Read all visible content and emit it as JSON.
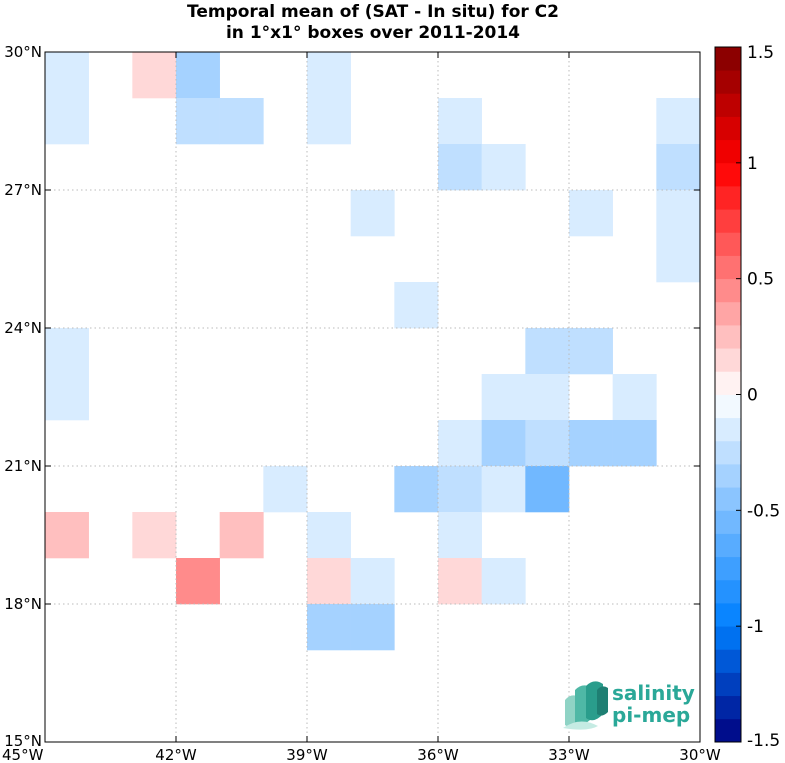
{
  "chart_data": {
    "type": "heatmap",
    "title_line1": "Temporal mean of (SAT - In situ) for C2",
    "title_line2": "in 1°x1° boxes over 2011-2014",
    "x_ticks": [
      {
        "lon": -45,
        "label": "45°W"
      },
      {
        "lon": -42,
        "label": "42°W"
      },
      {
        "lon": -39,
        "label": "39°W"
      },
      {
        "lon": -36,
        "label": "36°W"
      },
      {
        "lon": -33,
        "label": "33°W"
      },
      {
        "lon": -30,
        "label": "30°W"
      }
    ],
    "y_ticks": [
      {
        "lat": 30,
        "label": "30°N"
      },
      {
        "lat": 27,
        "label": "27°N"
      },
      {
        "lat": 24,
        "label": "24°N"
      },
      {
        "lat": 21,
        "label": "21°N"
      },
      {
        "lat": 18,
        "label": "18°N"
      },
      {
        "lat": 15,
        "label": "15°N"
      }
    ],
    "xlim": [
      -45,
      -30
    ],
    "ylim": [
      15,
      30
    ],
    "grid": true,
    "colorbar": {
      "min": -1.5,
      "max": 1.5,
      "levels": 30,
      "ticks": [
        {
          "value": 1.5,
          "label": "1.5"
        },
        {
          "value": 1,
          "label": "1"
        },
        {
          "value": 0.5,
          "label": "0.5"
        },
        {
          "value": 0,
          "label": "0"
        },
        {
          "value": -0.5,
          "label": "-0.5"
        },
        {
          "value": -1,
          "label": "-1"
        },
        {
          "value": -1.5,
          "label": "-1.5"
        }
      ],
      "colormap": "blue-white-red"
    },
    "cells": [
      {
        "lon": -45,
        "lat": 29,
        "value": -0.15
      },
      {
        "lon": -45,
        "lat": 28,
        "value": -0.15
      },
      {
        "lon": -43,
        "lat": 29,
        "value": 0.15
      },
      {
        "lon": -42,
        "lat": 29,
        "value": -0.35
      },
      {
        "lon": -42,
        "lat": 28,
        "value": -0.25
      },
      {
        "lon": -41,
        "lat": 28,
        "value": -0.25
      },
      {
        "lon": -39,
        "lat": 29,
        "value": -0.15
      },
      {
        "lon": -39,
        "lat": 28,
        "value": -0.15
      },
      {
        "lon": -36,
        "lat": 28,
        "value": -0.15
      },
      {
        "lon": -36,
        "lat": 27,
        "value": -0.25
      },
      {
        "lon": -35,
        "lat": 27,
        "value": -0.15
      },
      {
        "lon": -31,
        "lat": 28,
        "value": -0.15
      },
      {
        "lon": -31,
        "lat": 27,
        "value": -0.25
      },
      {
        "lon": -31,
        "lat": 26,
        "value": -0.15
      },
      {
        "lon": -31,
        "lat": 25,
        "value": -0.15
      },
      {
        "lon": -38,
        "lat": 26,
        "value": -0.15
      },
      {
        "lon": -33,
        "lat": 26,
        "value": -0.15
      },
      {
        "lon": -37,
        "lat": 24,
        "value": -0.15
      },
      {
        "lon": -45,
        "lat": 23,
        "value": -0.15
      },
      {
        "lon": -45,
        "lat": 22,
        "value": -0.15
      },
      {
        "lon": -34,
        "lat": 23,
        "value": -0.25
      },
      {
        "lon": -33,
        "lat": 23,
        "value": -0.25
      },
      {
        "lon": -35,
        "lat": 22,
        "value": -0.15
      },
      {
        "lon": -34,
        "lat": 22,
        "value": -0.15
      },
      {
        "lon": -32,
        "lat": 22,
        "value": -0.15
      },
      {
        "lon": -36,
        "lat": 21,
        "value": -0.15
      },
      {
        "lon": -35,
        "lat": 21,
        "value": -0.35
      },
      {
        "lon": -34,
        "lat": 21,
        "value": -0.25
      },
      {
        "lon": -33,
        "lat": 21,
        "value": -0.35
      },
      {
        "lon": -32,
        "lat": 21,
        "value": -0.35
      },
      {
        "lon": -40,
        "lat": 20,
        "value": -0.15
      },
      {
        "lon": -37,
        "lat": 20,
        "value": -0.35
      },
      {
        "lon": -36,
        "lat": 20,
        "value": -0.25
      },
      {
        "lon": -35,
        "lat": 20,
        "value": -0.15
      },
      {
        "lon": -34,
        "lat": 20,
        "value": -0.55
      },
      {
        "lon": -45,
        "lat": 19,
        "value": 0.25
      },
      {
        "lon": -43,
        "lat": 19,
        "value": 0.15
      },
      {
        "lon": -41,
        "lat": 19,
        "value": 0.25
      },
      {
        "lon": -39,
        "lat": 19,
        "value": -0.15
      },
      {
        "lon": -36,
        "lat": 19,
        "value": -0.15
      },
      {
        "lon": -42,
        "lat": 18,
        "value": 0.45
      },
      {
        "lon": -39,
        "lat": 18,
        "value": 0.15
      },
      {
        "lon": -38,
        "lat": 18,
        "value": -0.15
      },
      {
        "lon": -36,
        "lat": 18,
        "value": 0.15
      },
      {
        "lon": -35,
        "lat": 18,
        "value": -0.15
      },
      {
        "lon": -39,
        "lat": 17,
        "value": -0.35
      },
      {
        "lon": -38,
        "lat": 17,
        "value": -0.35
      }
    ]
  },
  "logo": {
    "line1": "salinity",
    "line2": "pi-mep"
  }
}
